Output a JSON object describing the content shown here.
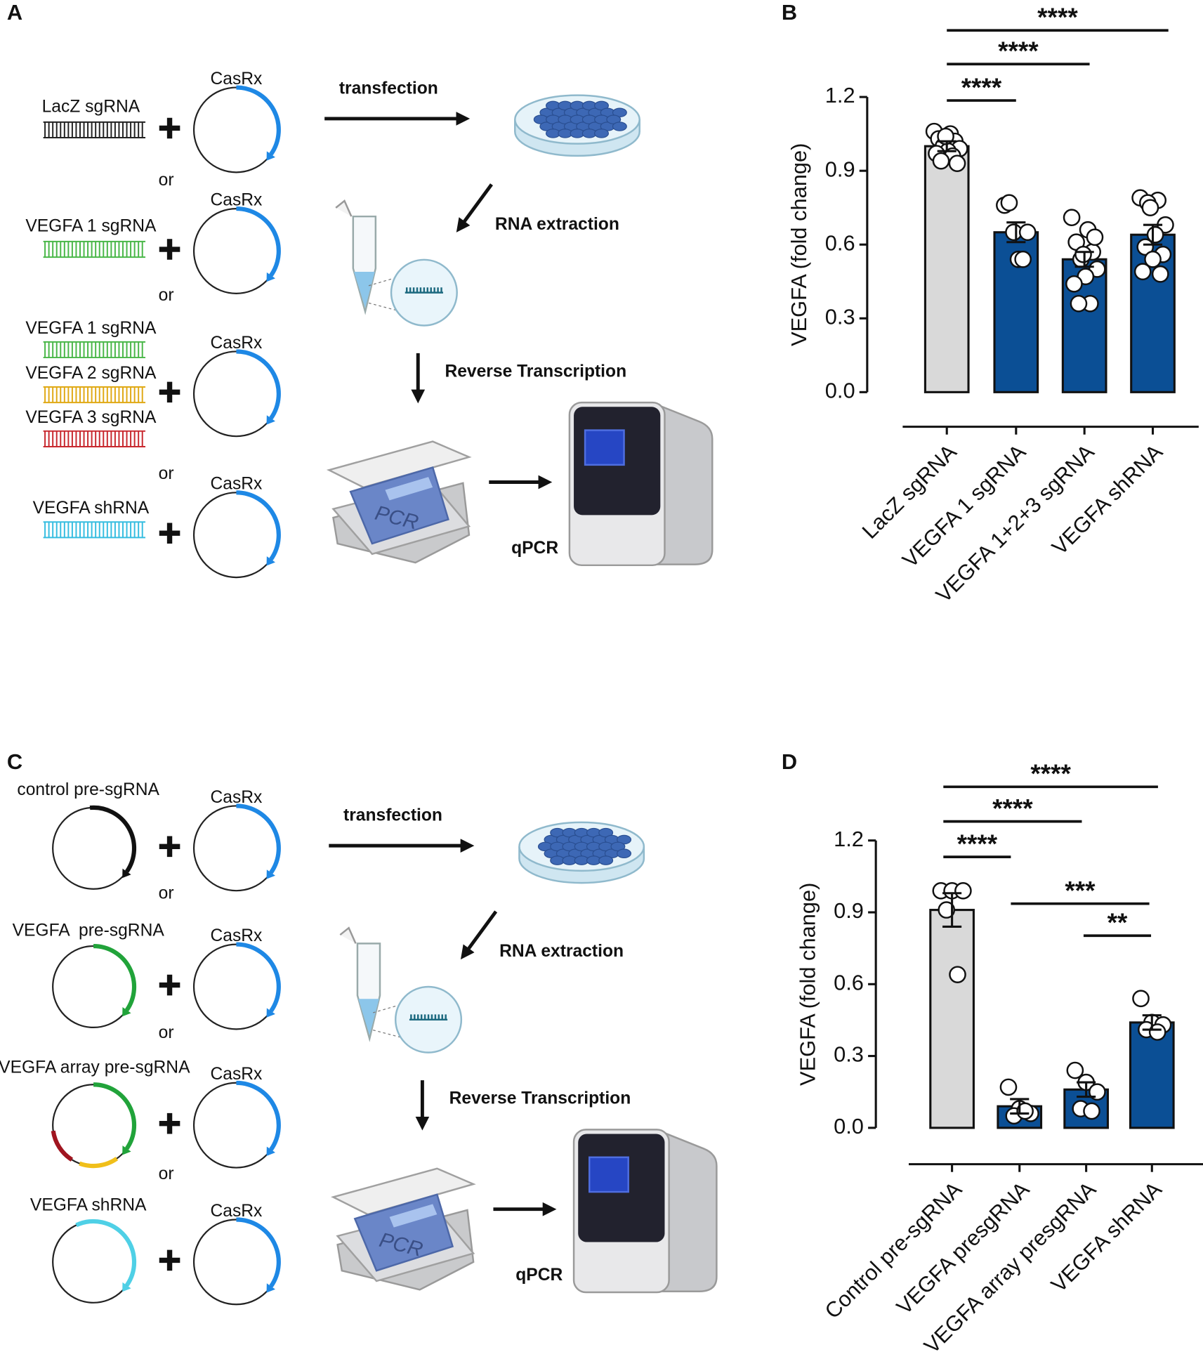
{
  "panels": [
    "A",
    "B",
    "C",
    "D"
  ],
  "diagram_a": {
    "guides": [
      "LacZ sgRNA",
      "VEGFA 1 sgRNA",
      "VEGFA 1 sgRNA",
      "VEGFA 2 sgRNA",
      "VEGFA 3 sgRNA",
      "VEGFA shRNA"
    ],
    "casrx": [
      "CasRx",
      "CasRx",
      "CasRx",
      "CasRx"
    ],
    "or": [
      "or",
      "or",
      "or"
    ],
    "steps": [
      "transfection",
      "RNA extraction",
      "Reverse Transcription",
      "qPCR"
    ],
    "machine_label": "PCR"
  },
  "diagram_c": {
    "guides": [
      "control pre-sgRNA",
      "VEGFA  pre-sgRNA",
      "VEGFA array pre-sgRNA",
      "VEGFA shRNA"
    ],
    "casrx": [
      "CasRx",
      "CasRx",
      "CasRx",
      "CasRx"
    ],
    "or": [
      "or",
      "or",
      "or"
    ],
    "steps": [
      "transfection",
      "RNA extraction",
      "Reverse Transcription",
      "qPCR"
    ],
    "machine_label": "PCR"
  },
  "chart_data": [
    {
      "type": "bar",
      "ylabel": "VEGFA (fold change)",
      "categories": [
        "LacZ sgRNA",
        "VEGFA 1 sgRNA",
        "VEGFA 1+2+3 sgRNA",
        "VEGFA shRNA"
      ],
      "values": [
        1.0,
        0.65,
        0.54,
        0.64
      ],
      "errors": [
        0.02,
        0.04,
        0.03,
        0.04
      ],
      "points": [
        [
          1.06,
          1.05,
          1.03,
          1.02,
          1.0,
          0.99,
          0.98,
          0.97,
          0.96,
          0.94,
          0.93,
          1.04
        ],
        [
          0.76,
          0.77,
          0.65,
          0.54,
          0.54,
          0.65
        ],
        [
          0.71,
          0.66,
          0.61,
          0.57,
          0.54,
          0.5,
          0.47,
          0.44,
          0.36,
          0.36,
          0.63,
          0.56
        ],
        [
          0.79,
          0.78,
          0.77,
          0.68,
          0.64,
          0.59,
          0.56,
          0.54,
          0.49,
          0.48,
          0.75
        ]
      ],
      "colors": [
        "#d9d9d9",
        "#0b4f95",
        "#0b4f95",
        "#0b4f95"
      ],
      "ylim": [
        0,
        1.2
      ],
      "yticks": [
        {
          "value": 0,
          "label": "0.0"
        },
        0.3,
        0.6,
        0.9,
        1.2
      ],
      "significance": [
        {
          "pair": [
            0,
            1
          ],
          "label": "****"
        },
        {
          "pair": [
            0,
            2
          ],
          "label": "****"
        },
        {
          "pair": [
            0,
            3
          ],
          "label": "****"
        }
      ]
    },
    {
      "type": "bar",
      "ylabel": "VEGFA (fold change)",
      "categories": [
        "Control pre-sgRNA",
        "VEGFA presgRNA",
        "VEGFA array presgRNA",
        "VEGFA shRNA"
      ],
      "values": [
        0.91,
        0.09,
        0.16,
        0.44
      ],
      "errors": [
        0.07,
        0.03,
        0.03,
        0.03
      ],
      "points": [
        [
          0.99,
          0.99,
          0.99,
          0.91,
          0.64
        ],
        [
          0.17,
          0.08,
          0.06,
          0.05,
          0.07
        ],
        [
          0.24,
          0.19,
          0.15,
          0.08,
          0.07
        ],
        [
          0.54,
          0.44,
          0.43,
          0.41,
          0.4
        ]
      ],
      "colors": [
        "#d9d9d9",
        "#0b4f95",
        "#0b4f95",
        "#0b4f95"
      ],
      "ylim": [
        0,
        1.2
      ],
      "yticks": [
        {
          "value": 0,
          "label": "0.0"
        },
        0.3,
        0.6,
        0.9,
        1.2
      ],
      "significance": [
        {
          "pair": [
            0,
            1
          ],
          "label": "****"
        },
        {
          "pair": [
            0,
            2
          ],
          "label": "****"
        },
        {
          "pair": [
            0,
            3
          ],
          "label": "****"
        },
        {
          "pair": [
            1,
            3
          ],
          "label": "***"
        },
        {
          "pair": [
            2,
            3
          ],
          "label": "**"
        }
      ]
    }
  ]
}
